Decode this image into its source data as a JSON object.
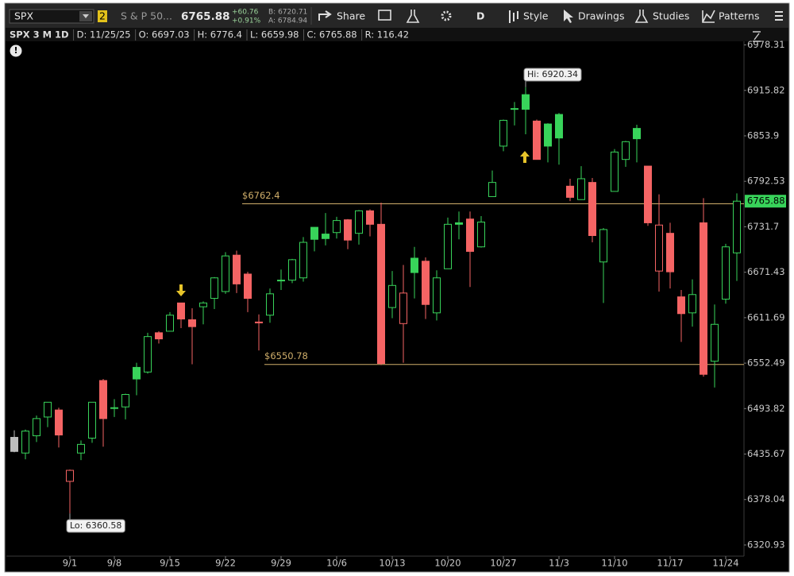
{
  "toolbar": {
    "symbol": "SPX",
    "badge": "2",
    "description": "S & P 50...",
    "last": "6765.88",
    "change": "+60.76",
    "change_percent": "+0.91%",
    "bid": "B: 6720.71",
    "ask": "A: 6784.94",
    "buttons": [
      "Share",
      "D",
      "Style",
      "Drawings",
      "Studies",
      "Patterns"
    ]
  },
  "info_bar": {
    "title": "SPX 3 M 1D",
    "items": [
      "D: 11/25/25",
      "O: 6697.03",
      "H: 6776.4",
      "L: 6659.98",
      "C: 6765.88",
      "R: 116.42"
    ]
  },
  "chart_data": {
    "type": "candlestick",
    "log_scale": true,
    "up_color": "#38d35a",
    "down_color": "#f56464",
    "neutral_color": "#bdbdbd",
    "categories": [
      null,
      null,
      null,
      null,
      null,
      "9/1",
      null,
      null,
      null,
      "9/8",
      null,
      null,
      null,
      null,
      "9/15",
      null,
      null,
      null,
      null,
      "9/22",
      null,
      null,
      null,
      null,
      "9/29",
      null,
      null,
      null,
      null,
      "10/6",
      null,
      null,
      null,
      null,
      "10/13",
      null,
      null,
      null,
      null,
      "10/20",
      null,
      null,
      null,
      null,
      "10/27",
      null,
      null,
      null,
      null,
      "11/3",
      null,
      null,
      null,
      null,
      "11/10",
      null,
      null,
      null,
      null,
      "11/17",
      null,
      null,
      null,
      null,
      "11/24",
      null
    ],
    "open": [
      6457,
      6437,
      6459,
      6483,
      6492,
      6401,
      6437,
      6456,
      6530,
      6494,
      6496,
      6547,
      6541,
      6592,
      6594,
      6631,
      6609,
      6626,
      6637,
      6646,
      6694,
      6669,
      6606,
      6615,
      6661,
      6661,
      6664,
      6731,
      6722,
      6724,
      6741,
      6723,
      6753,
      6735,
      6625,
      6604,
      6690,
      6686,
      6618,
      6676,
      6737,
      6742,
      6705,
      6772,
      6840,
      6891,
      6910,
      6874,
      6870,
      6883,
      6786,
      6768,
      6791,
      6685,
      6779,
      6822,
      6864,
      6813,
      6673,
      6723,
      6639,
      6618,
      6737,
      6555,
      6636,
      6697.03
    ],
    "high": [
      6466,
      6467,
      6485,
      6500,
      6495,
      6416,
      6453,
      6502,
      6532,
      6506,
      6513,
      6553,
      6592,
      6594,
      6619,
      6631,
      6624,
      6633,
      6665,
      6698,
      6700,
      6672,
      6616,
      6650,
      6675,
      6689,
      6718,
      6731,
      6750,
      6745,
      6742,
      6754,
      6755,
      6764,
      6673,
      6681,
      6705,
      6691,
      6674,
      6744,
      6752,
      6752,
      6746,
      6807,
      6876,
      6900,
      6920.34,
      6876,
      6871,
      6885,
      6796,
      6813,
      6797,
      6730,
      6836,
      6847,
      6869,
      6813,
      6775,
      6737,
      6648,
      6662,
      6770,
      6629,
      6709,
      6776.4
    ],
    "low": [
      6438,
      6429,
      6451,
      6470,
      6444,
      6360.58,
      6428,
      6450,
      6445,
      6483,
      6480,
      6511,
      6539,
      6578,
      6594,
      6598,
      6551,
      6603,
      6623,
      6643,
      6644,
      6619,
      6569,
      6605,
      6648,
      6657,
      6659,
      6699,
      6707,
      6716,
      6702,
      6708,
      6719,
      6550,
      6611,
      6553,
      6637,
      6610,
      6608,
      6676,
      6715,
      6652,
      6704,
      6772,
      6833,
      6868,
      6856,
      6822,
      6818,
      6815,
      6766,
      6768,
      6711,
      6631,
      6779,
      6812,
      6818,
      6733,
      6646,
      6650,
      6580,
      6600,
      6535,
      6521,
      6630,
      6659.98
    ],
    "close": [
      6439,
      6465,
      6481,
      6502,
      6460,
      6415,
      6448,
      6502,
      6481,
      6495,
      6512,
      6532,
      6587,
      6584,
      6615,
      6610,
      6600,
      6631,
      6664,
      6693,
      6656,
      6637,
      6605,
      6643,
      6661,
      6688,
      6711,
      6715,
      6716,
      6740,
      6714,
      6753,
      6735,
      6552,
      6654,
      6644,
      6671,
      6629,
      6664,
      6735,
      6735,
      6699,
      6738,
      6791,
      6875,
      6890,
      6890,
      6822,
      6840,
      6851,
      6771,
      6796,
      6720,
      6728,
      6832,
      6846,
      6850,
      6737,
      6734,
      6672,
      6617,
      6642,
      6538,
      6603,
      6705,
      6765.88
    ],
    "ylim": [
      6307,
      7002
    ],
    "yticks": [
      6320.93,
      6378.04,
      6435.67,
      6493.82,
      6552.49,
      6611.69,
      6671.43,
      6731.7,
      6792.53,
      6853.9,
      6915.82,
      6978.31
    ],
    "lines": [
      {
        "label": "$6762.4",
        "value": 6762.4,
        "color": "#cfae6a"
      },
      {
        "label": "$6550.78",
        "value": 6550.78,
        "color": "#cfae6a"
      }
    ],
    "annotations": [
      "Hi: 6920.34",
      "Lo: 6360.58"
    ]
  }
}
